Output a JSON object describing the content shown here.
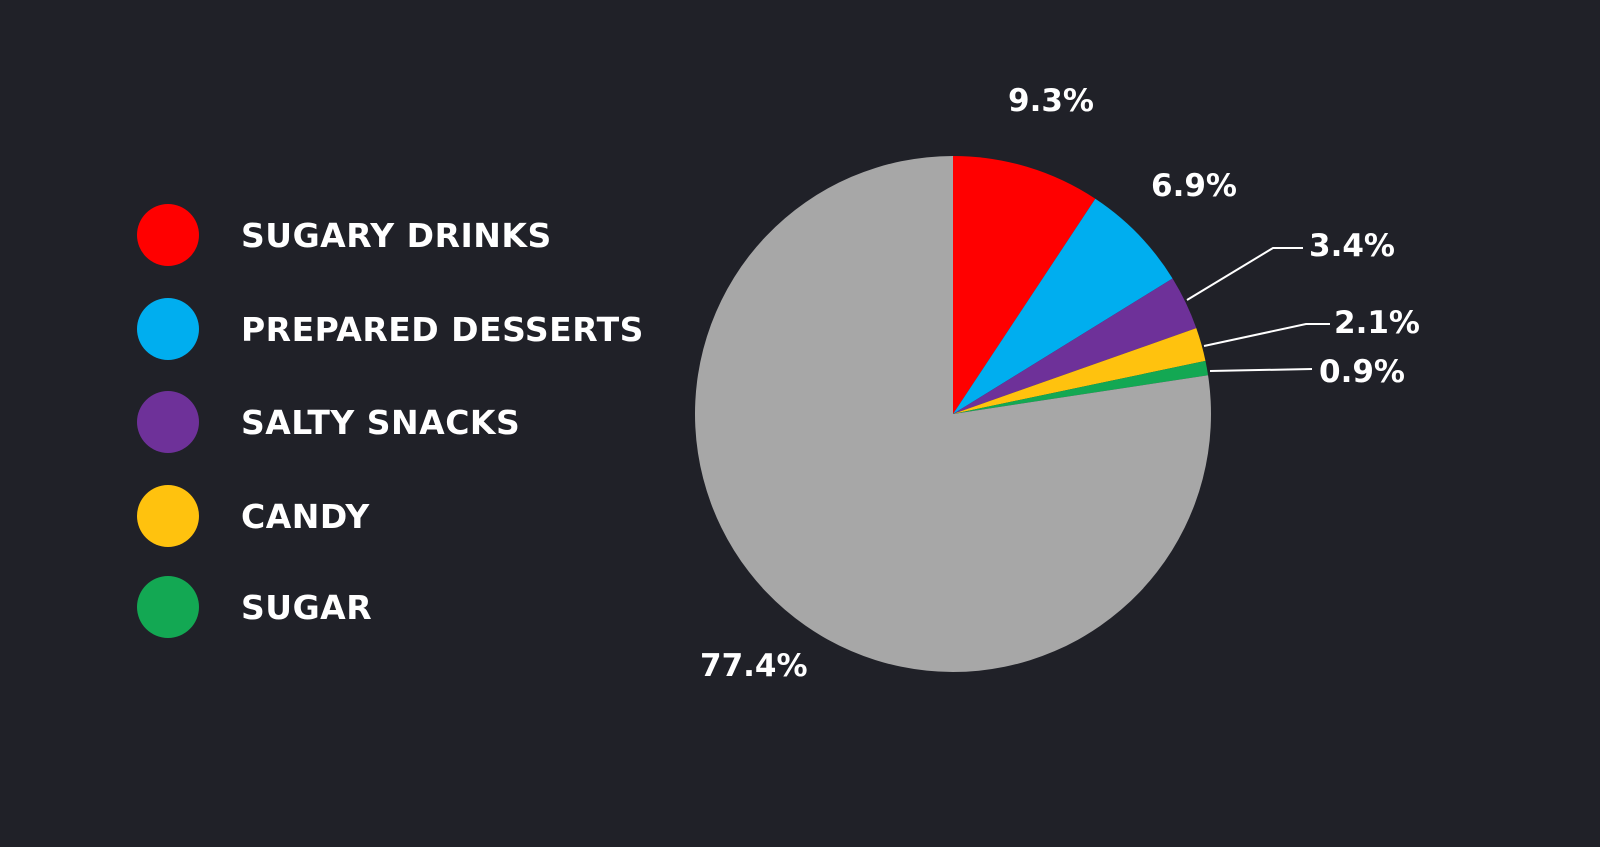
{
  "chart_data": {
    "type": "pie",
    "title": "",
    "legend_position": "left",
    "slices": [
      {
        "label": "SUGARY DRINKS",
        "value": 9.3,
        "display": "9.3%",
        "color": "#FF0000"
      },
      {
        "label": "PREPARED DESSERTS",
        "value": 6.9,
        "display": "6.9%",
        "color": "#00AEEF"
      },
      {
        "label": "SALTY SNACKS",
        "value": 3.4,
        "display": "3.4%",
        "color": "#6E3199"
      },
      {
        "label": "CANDY",
        "value": 2.1,
        "display": "2.1%",
        "color": "#FFC20E"
      },
      {
        "label": "SUGAR",
        "value": 0.9,
        "display": "0.9%",
        "color": "#13A853"
      },
      {
        "label": "",
        "value": 77.4,
        "display": "77.4%",
        "color": "#A7A7A7"
      }
    ]
  },
  "legend": {
    "items": [
      {
        "label": "SUGARY DRINKS",
        "color": "#FF0000"
      },
      {
        "label": "PREPARED DESSERTS",
        "color": "#00AEEF"
      },
      {
        "label": "SALTY SNACKS",
        "color": "#6E3199"
      },
      {
        "label": "CANDY",
        "color": "#FFC20E"
      },
      {
        "label": "SUGAR",
        "color": "#13A853"
      }
    ]
  },
  "labels": {
    "sugary_drinks": "9.3%",
    "prepared_desserts": "6.9%",
    "salty_snacks": "3.4%",
    "candy": "2.1%",
    "sugar": "0.9%",
    "other": "77.4%"
  },
  "colors": {
    "background": "#202128",
    "text": "#FFFFFF",
    "leader_line": "#FFFFFF"
  }
}
